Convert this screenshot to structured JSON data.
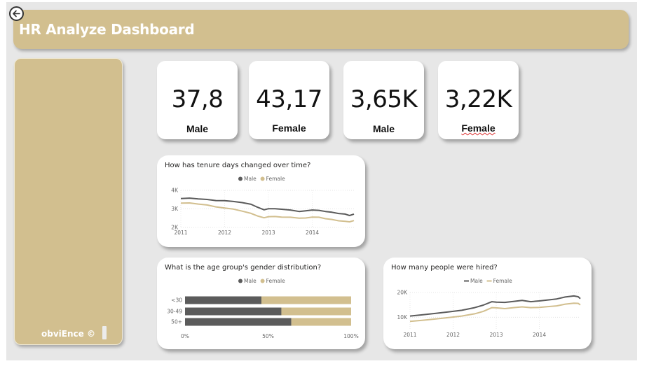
{
  "header": {
    "title": "HR Analyze Dashboard"
  },
  "sidebar": {
    "brand": "obviEnce ©"
  },
  "kpis": [
    {
      "value": "37,8",
      "label": "Male"
    },
    {
      "value": "43,17",
      "label": "Female"
    },
    {
      "value": "3,65K",
      "label": "Male"
    },
    {
      "value": "3,22K",
      "label": "Female"
    }
  ],
  "colors": {
    "male": "#5b5b5b",
    "female": "#d2bf8f",
    "accent": "#d2bf8f"
  },
  "chart_data": [
    {
      "type": "line",
      "title": "How has tenure days changed over time?",
      "legend": {
        "placement": "top-center"
      },
      "x_ticks": [
        "2011",
        "2012",
        "2013",
        "2014"
      ],
      "y_ticks": [
        "4K",
        "3K",
        "2K"
      ],
      "xlim": [
        2011.0,
        2014.95
      ],
      "ylim": [
        2000,
        4000
      ],
      "grid": true,
      "series": [
        {
          "name": "Male",
          "x": [
            2011.0,
            2011.2,
            2011.4,
            2011.6,
            2011.8,
            2012.0,
            2012.2,
            2012.4,
            2012.6,
            2012.75,
            2012.9,
            2013.0,
            2013.15,
            2013.3,
            2013.5,
            2013.7,
            2013.85,
            2014.0,
            2014.15,
            2014.3,
            2014.45,
            2014.6,
            2014.75,
            2014.85,
            2014.95
          ],
          "y": [
            3560,
            3580,
            3540,
            3510,
            3450,
            3440,
            3400,
            3340,
            3250,
            3090,
            2950,
            3010,
            3010,
            2980,
            2940,
            2860,
            2900,
            2940,
            2920,
            2860,
            2820,
            2750,
            2720,
            2640,
            2720
          ]
        },
        {
          "name": "Female",
          "x": [
            2011.0,
            2011.2,
            2011.4,
            2011.6,
            2011.8,
            2012.0,
            2012.2,
            2012.4,
            2012.6,
            2012.75,
            2012.9,
            2013.0,
            2013.15,
            2013.3,
            2013.5,
            2013.7,
            2013.85,
            2014.0,
            2014.15,
            2014.3,
            2014.45,
            2014.6,
            2014.75,
            2014.85,
            2014.95
          ],
          "y": [
            3310,
            3320,
            3260,
            3210,
            3110,
            3050,
            2990,
            2880,
            2760,
            2620,
            2520,
            2580,
            2590,
            2560,
            2550,
            2500,
            2510,
            2560,
            2550,
            2470,
            2430,
            2360,
            2330,
            2300,
            2370
          ]
        }
      ]
    },
    {
      "type": "bar",
      "orientation": "horizontal",
      "stacked": "100%",
      "title": "What is the age group's gender distribution?",
      "legend": {
        "placement": "top-center"
      },
      "categories": [
        "<30",
        "30-49",
        "50+"
      ],
      "x_ticks": [
        "0%",
        "50%",
        "100%"
      ],
      "xlim": [
        0,
        100
      ],
      "series": [
        {
          "name": "Male",
          "values": [
            46,
            58,
            64
          ]
        },
        {
          "name": "Female",
          "values": [
            54,
            42,
            36
          ]
        }
      ]
    },
    {
      "type": "line",
      "title": "How many people were hired?",
      "legend": {
        "placement": "top-center"
      },
      "x_ticks": [
        "2011",
        "2012",
        "2013",
        "2014"
      ],
      "y_ticks": [
        "20K",
        "10K"
      ],
      "xlim": [
        2011.0,
        2014.95
      ],
      "ylim": [
        5000,
        20000
      ],
      "grid": true,
      "series": [
        {
          "name": "Male",
          "x": [
            2011.0,
            2011.3,
            2011.6,
            2011.9,
            2012.2,
            2012.5,
            2012.7,
            2012.9,
            2013.0,
            2013.2,
            2013.4,
            2013.6,
            2013.8,
            2014.0,
            2014.2,
            2014.4,
            2014.6,
            2014.8,
            2014.9,
            2014.95
          ],
          "y": [
            10500,
            11000,
            11600,
            12200,
            12800,
            13900,
            14900,
            16300,
            16100,
            16000,
            16400,
            16800,
            16300,
            16600,
            17000,
            17400,
            18200,
            18600,
            18300,
            17500
          ]
        },
        {
          "name": "Female",
          "x": [
            2011.0,
            2011.3,
            2011.6,
            2011.9,
            2012.2,
            2012.5,
            2012.7,
            2012.9,
            2013.0,
            2013.2,
            2013.4,
            2013.6,
            2013.8,
            2014.0,
            2014.2,
            2014.4,
            2014.6,
            2014.8,
            2014.9,
            2014.95
          ],
          "y": [
            8300,
            8800,
            9300,
            9900,
            10500,
            11400,
            12400,
            13900,
            13800,
            13500,
            13900,
            14200,
            13900,
            14000,
            14300,
            14600,
            15300,
            15700,
            15600,
            15000
          ]
        }
      ]
    }
  ]
}
